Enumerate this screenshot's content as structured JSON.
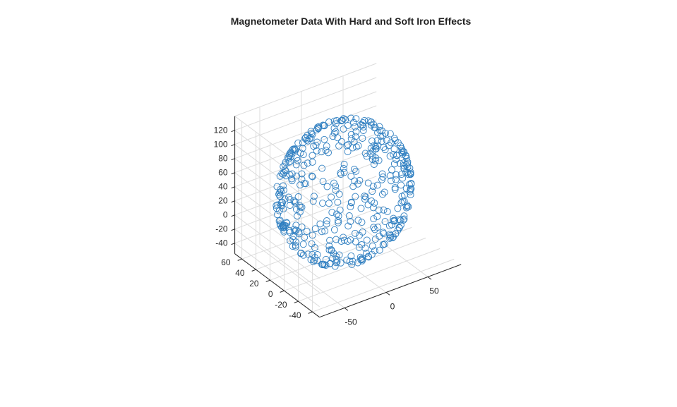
{
  "chart_data": {
    "type": "scatter",
    "dimensions": 3,
    "title": "Magnetometer Data With Hard and Soft Iron Effects",
    "xlabel": "",
    "ylabel": "",
    "zlabel": "",
    "marker": "circle-open",
    "color": "#2f7fc1",
    "grid": true,
    "x_ticks": [
      "-50",
      "0",
      "50"
    ],
    "y_ticks": [
      "-40",
      "-20",
      "0",
      "20",
      "40",
      "60"
    ],
    "z_ticks": [
      "-40",
      "-20",
      "0",
      "20",
      "40",
      "60",
      "80",
      "100",
      "120"
    ],
    "xlim": [
      -80,
      90
    ],
    "ylim": [
      -50,
      70
    ],
    "zlim": [
      -55,
      140
    ],
    "ellipsoid": {
      "center": [
        0,
        10,
        42
      ],
      "radii": [
        80,
        55,
        85
      ]
    },
    "n_points": 460
  }
}
